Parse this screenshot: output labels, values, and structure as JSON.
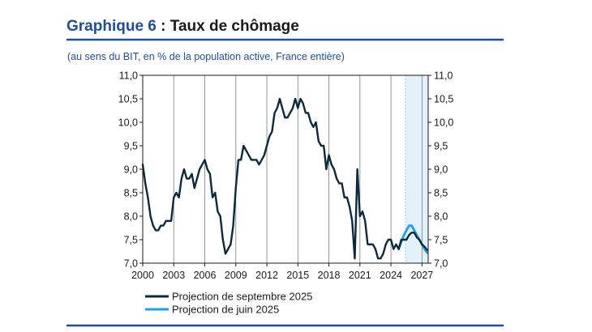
{
  "header": {
    "title_prefix": "Graphique 6",
    "title_rest": " : Taux de chômage",
    "subtitle": "(au sens du BIT, en % de la population active, France entière)"
  },
  "colors": {
    "title_blue": "#1f4e9c",
    "rule_blue": "#1f4e9c",
    "series_main": "#0b2a3d",
    "series_june": "#1aa3e8",
    "projection_shade": "#e3f1fb",
    "text": "#1a1a1a"
  },
  "chart_data": {
    "type": "line",
    "title": "Graphique 6 : Taux de chômage",
    "subtitle": "(au sens du BIT, en % de la population active, France entière)",
    "xlabel": "",
    "ylabel": "",
    "xlim": [
      2000,
      2027.6
    ],
    "ylim": [
      7.0,
      11.0
    ],
    "grid": "vertical",
    "projection_band": [
      2025.4,
      2027.6
    ],
    "y_ticks": [
      "7,0",
      "7,5",
      "8,0",
      "8,5",
      "9,0",
      "9,5",
      "10,0",
      "10,5",
      "11,0"
    ],
    "y_tick_values": [
      7.0,
      7.5,
      8.0,
      8.5,
      9.0,
      9.5,
      10.0,
      10.5,
      11.0
    ],
    "x_ticks": [
      "2000",
      "2003",
      "2006",
      "2009",
      "2012",
      "2015",
      "2018",
      "2021",
      "2024",
      "2027"
    ],
    "x_tick_values": [
      2000,
      2003,
      2006,
      2009,
      2012,
      2015,
      2018,
      2021,
      2024,
      2027
    ],
    "legend_position": "bottom-left",
    "series": [
      {
        "name": "Projection de septembre 2025",
        "role": "main",
        "x": [
          2000.0,
          2000.25,
          2000.5,
          2000.75,
          2001.0,
          2001.25,
          2001.5,
          2001.75,
          2002.0,
          2002.25,
          2002.5,
          2002.75,
          2003.0,
          2003.25,
          2003.5,
          2003.75,
          2004.0,
          2004.25,
          2004.5,
          2004.75,
          2005.0,
          2005.25,
          2005.5,
          2005.75,
          2006.0,
          2006.25,
          2006.5,
          2006.75,
          2007.0,
          2007.25,
          2007.5,
          2007.75,
          2008.0,
          2008.25,
          2008.5,
          2008.75,
          2009.0,
          2009.25,
          2009.5,
          2009.75,
          2010.0,
          2010.25,
          2010.5,
          2010.75,
          2011.0,
          2011.25,
          2011.5,
          2011.75,
          2012.0,
          2012.25,
          2012.5,
          2012.75,
          2013.0,
          2013.25,
          2013.5,
          2013.75,
          2014.0,
          2014.25,
          2014.5,
          2014.75,
          2015.0,
          2015.25,
          2015.5,
          2015.75,
          2016.0,
          2016.25,
          2016.5,
          2016.75,
          2017.0,
          2017.25,
          2017.5,
          2017.75,
          2018.0,
          2018.25,
          2018.5,
          2018.75,
          2019.0,
          2019.25,
          2019.5,
          2019.75,
          2020.0,
          2020.25,
          2020.5,
          2020.75,
          2021.0,
          2021.25,
          2021.5,
          2021.75,
          2022.0,
          2022.25,
          2022.5,
          2022.75,
          2023.0,
          2023.25,
          2023.5,
          2023.75,
          2024.0,
          2024.25,
          2024.5,
          2024.75,
          2025.0,
          2025.25,
          2025.5,
          2025.75,
          2026.0,
          2026.25,
          2026.5,
          2026.75,
          2027.0,
          2027.25,
          2027.5
        ],
        "y": [
          9.1,
          8.7,
          8.4,
          8.0,
          7.8,
          7.7,
          7.7,
          7.8,
          7.8,
          7.9,
          7.9,
          7.9,
          8.4,
          8.5,
          8.4,
          8.8,
          9.0,
          8.8,
          8.8,
          8.9,
          8.6,
          8.8,
          9.0,
          9.1,
          9.2,
          9.0,
          8.9,
          8.4,
          8.5,
          8.1,
          8.0,
          7.5,
          7.2,
          7.3,
          7.4,
          7.8,
          8.6,
          9.2,
          9.2,
          9.5,
          9.4,
          9.3,
          9.2,
          9.2,
          9.2,
          9.1,
          9.2,
          9.3,
          9.5,
          9.7,
          9.8,
          10.2,
          10.3,
          10.5,
          10.3,
          10.1,
          10.1,
          10.2,
          10.3,
          10.5,
          10.3,
          10.5,
          10.4,
          10.2,
          10.2,
          10.0,
          9.9,
          10.0,
          9.6,
          9.5,
          9.5,
          9.0,
          9.3,
          9.1,
          9.0,
          8.8,
          8.7,
          8.7,
          8.4,
          8.4,
          8.2,
          7.9,
          7.1,
          9.0,
          8.0,
          8.1,
          7.9,
          7.4,
          7.4,
          7.4,
          7.3,
          7.1,
          7.1,
          7.2,
          7.4,
          7.5,
          7.5,
          7.3,
          7.4,
          7.3,
          7.5,
          7.5,
          7.5,
          7.6,
          7.65,
          7.65,
          7.55,
          7.5,
          7.4,
          7.35,
          7.28
        ]
      },
      {
        "name": "Projection de juin 2025",
        "role": "june",
        "x": [
          2024.75,
          2025.0,
          2025.25,
          2025.5,
          2025.75,
          2026.0,
          2026.25,
          2026.5,
          2026.75,
          2027.0,
          2027.25,
          2027.5
        ],
        "y": [
          7.3,
          7.45,
          7.6,
          7.7,
          7.8,
          7.8,
          7.7,
          7.6,
          7.5,
          7.4,
          7.3,
          7.22
        ]
      }
    ]
  }
}
